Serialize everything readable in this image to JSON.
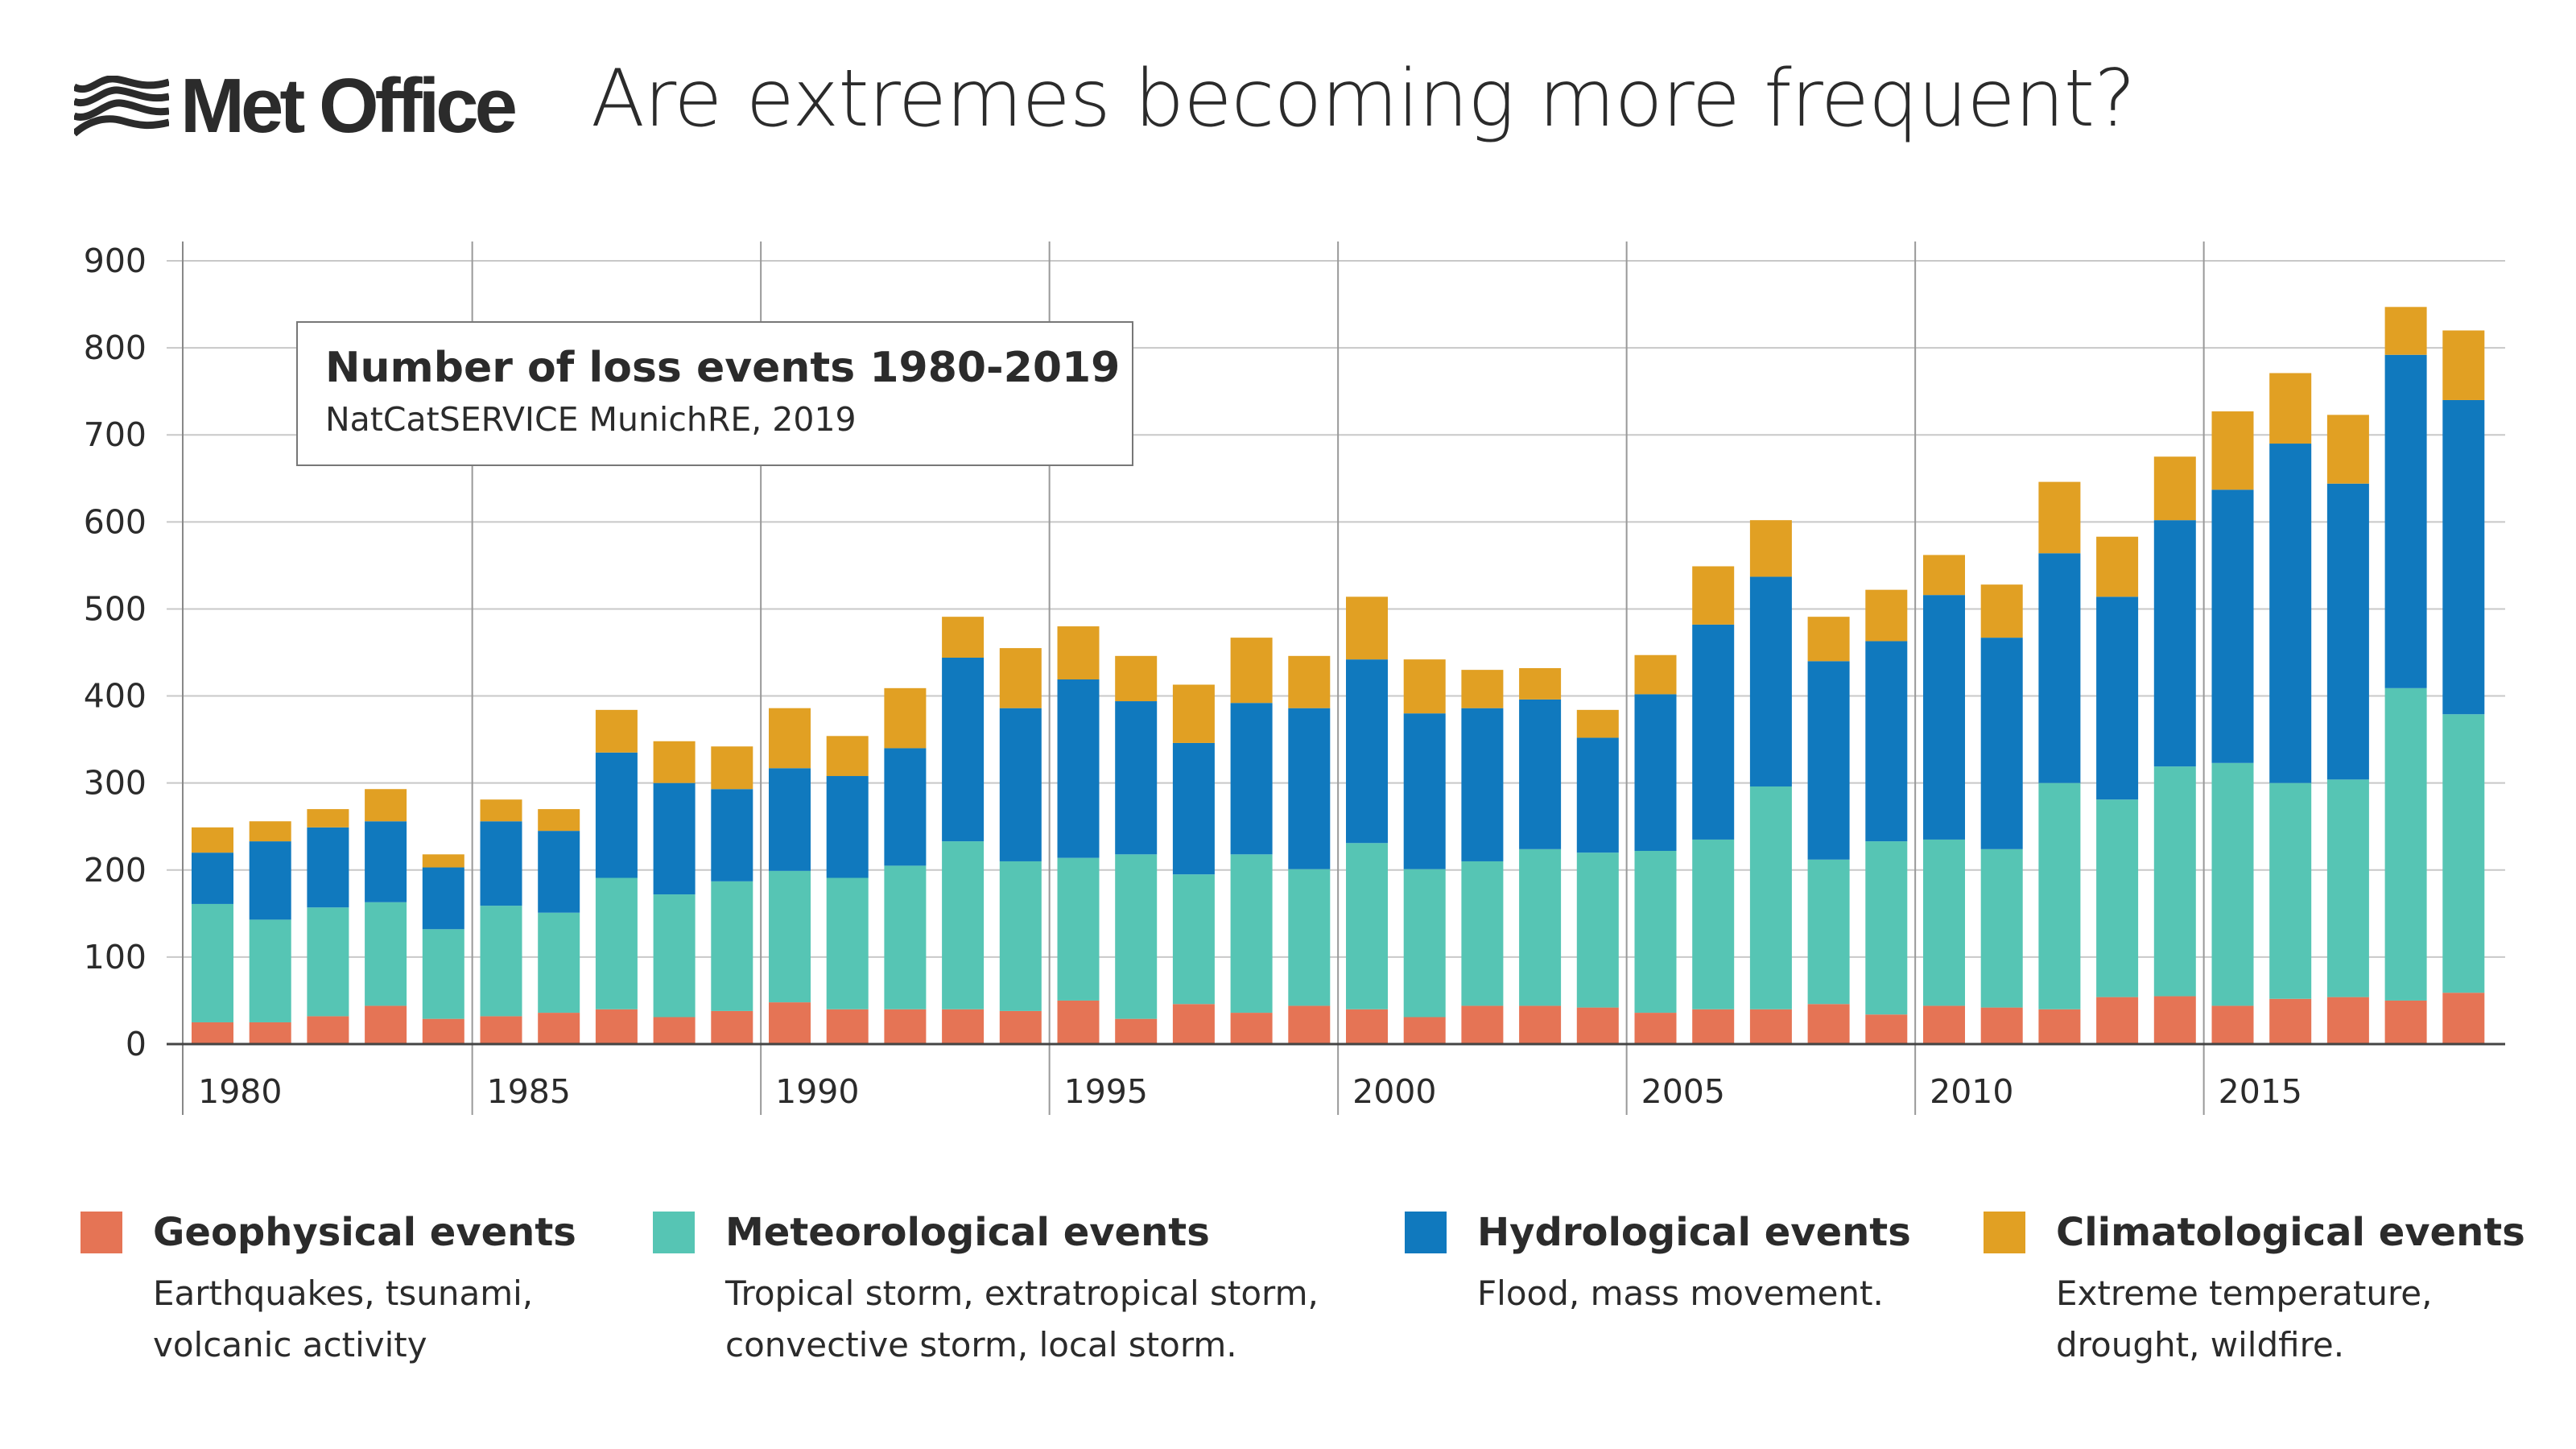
{
  "header": {
    "logo_text": "Met Office",
    "title": "Are extremes becoming more frequent?"
  },
  "annotation": {
    "title": "Number of loss events 1980-2019",
    "subtitle": "NatCatSERVICE MunichRE, 2019"
  },
  "colors": {
    "geophysical": "#e57455",
    "meteorological": "#56c5b4",
    "hydrological": "#1079be",
    "climatological": "#e1a023"
  },
  "legend": [
    {
      "label": "Geophysical events",
      "desc": [
        "Earthquakes, tsunami,",
        "volcanic activity"
      ]
    },
    {
      "label": "Meteorological events",
      "desc": [
        "Tropical storm, extratropical storm,",
        "convective storm, local storm."
      ]
    },
    {
      "label": "Hydrological events",
      "desc": [
        "Flood, mass movement."
      ]
    },
    {
      "label": "Climatological events",
      "desc": [
        "Extreme temperature,",
        "drought, wildfire."
      ]
    }
  ],
  "chart_data": {
    "type": "bar",
    "stacked": true,
    "title": "Number of loss events 1980-2019",
    "subtitle": "NatCatSERVICE MunichRE, 2019",
    "ylim": [
      0,
      900
    ],
    "yticks": [
      0,
      100,
      200,
      300,
      400,
      500,
      600,
      700,
      800,
      900
    ],
    "xtick_labels": [
      "1980",
      "1985",
      "1990",
      "1995",
      "2000",
      "2005",
      "2010",
      "2015"
    ],
    "grid": true,
    "legend_position": "bottom",
    "categories": [
      1980,
      1981,
      1982,
      1983,
      1984,
      1985,
      1986,
      1987,
      1988,
      1989,
      1990,
      1991,
      1992,
      1993,
      1994,
      1995,
      1996,
      1997,
      1998,
      1999,
      2000,
      2001,
      2002,
      2003,
      2004,
      2005,
      2006,
      2007,
      2008,
      2009,
      2010,
      2011,
      2012,
      2013,
      2014,
      2015,
      2016,
      2017,
      2018,
      2019
    ],
    "series": [
      {
        "name": "Geophysical events",
        "values": [
          25,
          25,
          32,
          44,
          29,
          32,
          36,
          40,
          31,
          38,
          48,
          40,
          40,
          40,
          38,
          50,
          29,
          46,
          36,
          44,
          40,
          31,
          44,
          44,
          42,
          36,
          40,
          40,
          46,
          34,
          44,
          42,
          40,
          54,
          55,
          44,
          52,
          54,
          50,
          59
        ]
      },
      {
        "name": "Meteorological events",
        "values": [
          136,
          118,
          125,
          119,
          103,
          127,
          115,
          151,
          141,
          149,
          151,
          151,
          165,
          193,
          172,
          164,
          189,
          149,
          182,
          157,
          191,
          170,
          166,
          180,
          178,
          186,
          195,
          256,
          166,
          199,
          191,
          182,
          260,
          227,
          264,
          279,
          248,
          250,
          359,
          320
        ]
      },
      {
        "name": "Hydrological events",
        "values": [
          59,
          90,
          92,
          93,
          71,
          97,
          94,
          144,
          128,
          106,
          118,
          117,
          135,
          211,
          176,
          205,
          176,
          151,
          174,
          185,
          211,
          179,
          176,
          172,
          132,
          180,
          247,
          241,
          228,
          230,
          281,
          243,
          264,
          233,
          283,
          314,
          390,
          340,
          383,
          361
        ]
      },
      {
        "name": "Climatological events",
        "values": [
          29,
          23,
          21,
          37,
          15,
          25,
          25,
          49,
          48,
          49,
          69,
          46,
          69,
          47,
          69,
          61,
          52,
          67,
          75,
          60,
          72,
          62,
          44,
          36,
          32,
          45,
          67,
          65,
          51,
          59,
          46,
          61,
          82,
          69,
          73,
          90,
          81,
          79,
          55,
          80
        ]
      }
    ]
  }
}
